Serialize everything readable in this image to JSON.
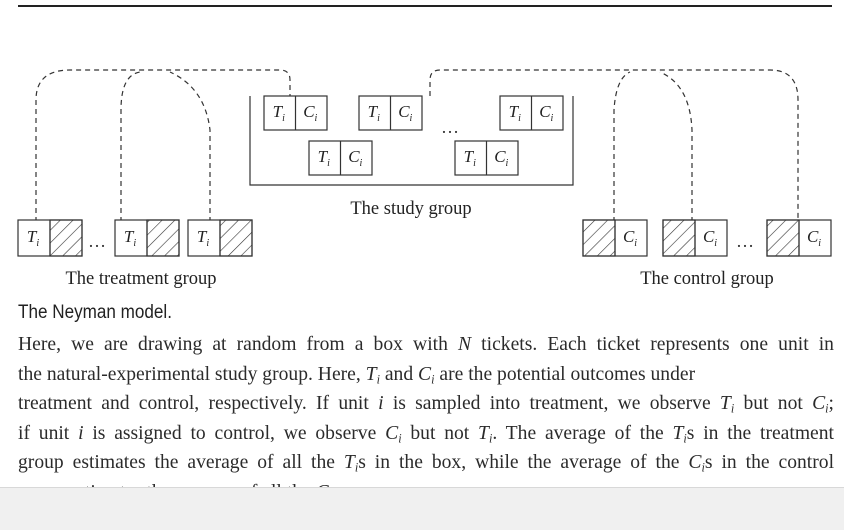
{
  "diagram": {
    "study_group_label": "The study group",
    "treatment_group_label": "The treatment group",
    "control_group_label": "The control group",
    "ellipsis": "…",
    "ticket_T": "T",
    "ticket_C": "C",
    "subscript": "i"
  },
  "caption": {
    "title": "The Neyman model.",
    "text": "Here, we are drawing at random from a box with N tickets. Each ticket represents one unit in the natural-experimental study group. Here, Ti and Ci are the potential outcomes under treatment and control, respectively. If unit i is sampled into treatment, we observe Ti but not Ci; if unit i is assigned to control, we observe Ci but not Ti. The average of the Tis in the treatment group estimates the average of all the Tis in the box, while the average of the Cis in the control group estimates the average of all the Cis."
  }
}
